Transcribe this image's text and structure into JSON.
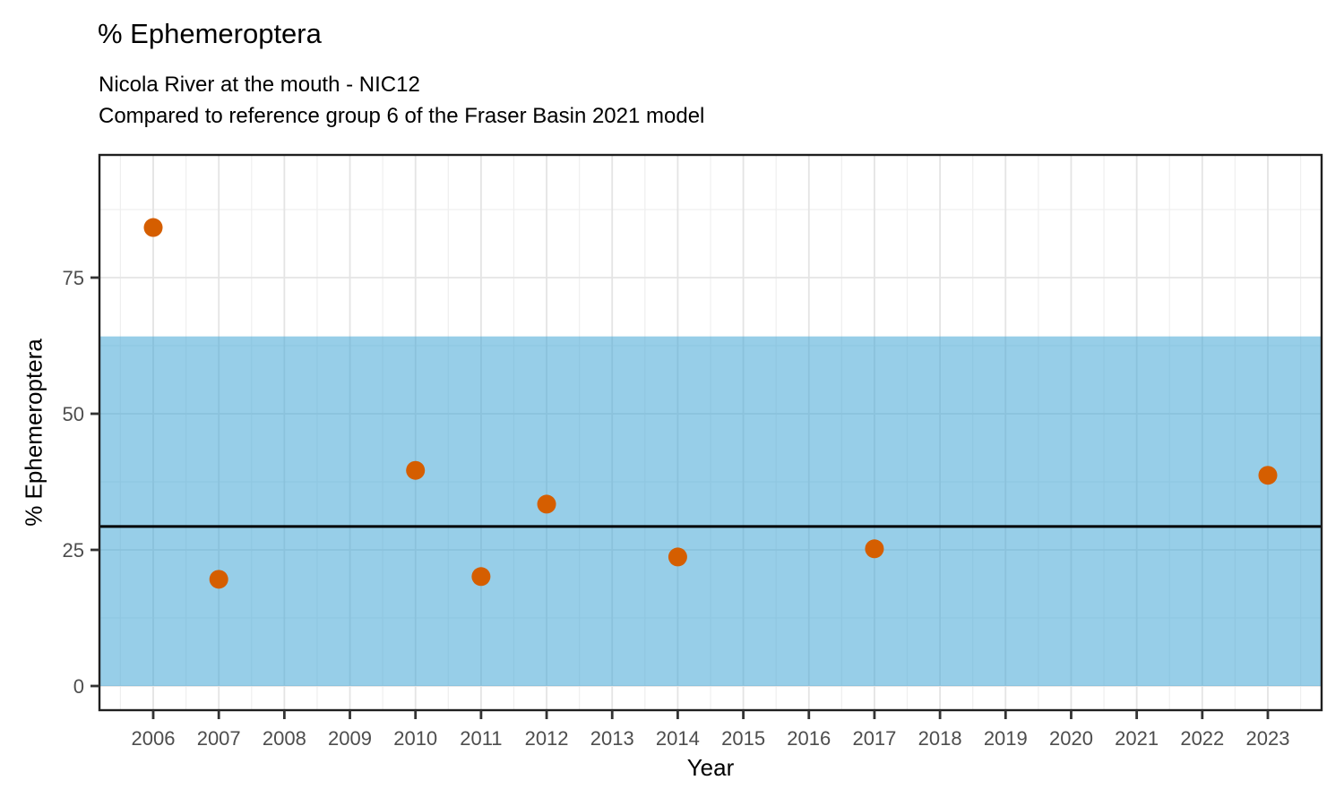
{
  "chart_data": {
    "type": "scatter",
    "title": "% Ephemeroptera",
    "subtitle1": "Nicola River at the mouth - NIC12",
    "subtitle2": "Compared to reference group 6 of the Fraser Basin 2021 model",
    "xlabel": "Year",
    "ylabel": "% Ephemeroptera",
    "x_domain": [
      2005.18,
      2023.82
    ],
    "y_domain": [
      -4.44,
      97.53
    ],
    "x_ticks": [
      2006,
      2007,
      2008,
      2009,
      2010,
      2011,
      2012,
      2013,
      2014,
      2015,
      2016,
      2017,
      2018,
      2019,
      2020,
      2021,
      2022,
      2023
    ],
    "y_ticks": [
      0,
      25,
      50,
      75
    ],
    "y_minor": [
      12.5,
      37.5,
      62.5,
      87.5
    ],
    "x_minor_start": 2005.5,
    "x_minor_end": 2023.5,
    "points": [
      {
        "year": 2006,
        "value": 84.2
      },
      {
        "year": 2007,
        "value": 19.6
      },
      {
        "year": 2010,
        "value": 39.6
      },
      {
        "year": 2011,
        "value": 20.1
      },
      {
        "year": 2012,
        "value": 33.4
      },
      {
        "year": 2014,
        "value": 23.7
      },
      {
        "year": 2017,
        "value": 25.2
      },
      {
        "year": 2023,
        "value": 38.7
      }
    ],
    "reference_band": {
      "low": 0,
      "high": 64.2,
      "color": "#42A5D6",
      "alpha": 0.55
    },
    "reference_line": {
      "value": 29.3,
      "color": "#000000"
    },
    "point_color": "#D55E00",
    "point_radius": 10.5,
    "grid": {
      "major_color": "#E4E4E4",
      "minor_color": "#EFEFEF"
    },
    "axis": {
      "border_color": "#1F1F1F",
      "tick_color": "#333333",
      "tick_label_color": "#4D4D4D"
    },
    "legend": "none",
    "background": "#FFFFFF"
  }
}
